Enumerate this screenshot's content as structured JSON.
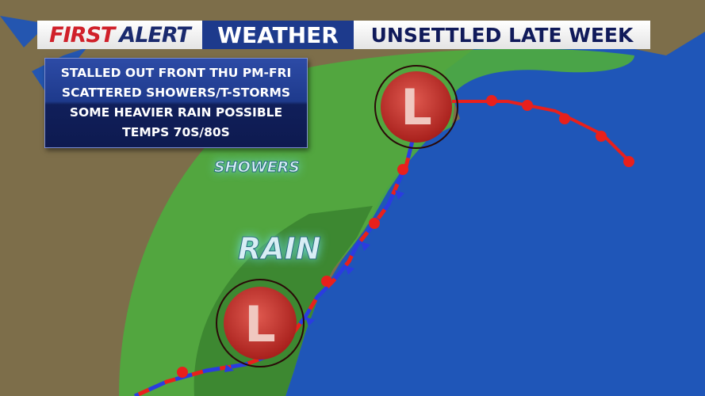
{
  "header": {
    "brand_first": "FIRST",
    "brand_alert": "ALERT",
    "brand_weather": "WEATHER",
    "title": "UNSETTLED LATE WEEK"
  },
  "info_box": {
    "lines": [
      "STALLED OUT FRONT THU PM-FRI",
      "SCATTERED SHOWERS/T-STORMS",
      "SOME HEAVIER RAIN POSSIBLE",
      "TEMPS 70S/80S"
    ]
  },
  "map": {
    "labels": {
      "showers": "SHOWERS",
      "rain": "RAIN"
    },
    "lows": [
      {
        "symbol": "L"
      },
      {
        "symbol": "L"
      }
    ],
    "colors": {
      "ocean": "#1f56b8",
      "land": "#7a6a48",
      "showers_area": "#4caa3c",
      "rain_area": "#3d8a32",
      "warm_front": "#e8201c",
      "cold_front": "#2a3ce0",
      "low": "#c8302a"
    }
  }
}
